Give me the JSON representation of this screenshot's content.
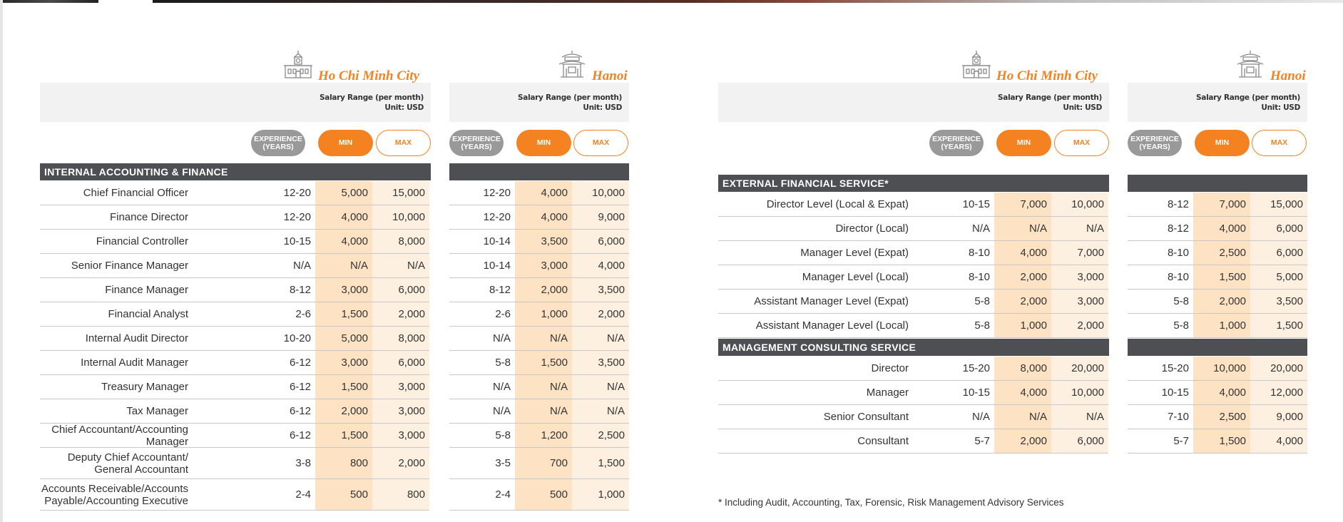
{
  "colors": {
    "accent": "#f58220",
    "section_bar": "#4d4f52",
    "min_fill": "#fde3c4",
    "max_fill": "#fdf0e0",
    "header_box": "#f2f2f2"
  },
  "cities": {
    "hcmc": "Ho Chi Minh City",
    "hanoi": "Hanoi"
  },
  "icons": {
    "hcmc": "clock-tower-building-icon",
    "hanoi": "pagoda-gate-icon"
  },
  "header": {
    "salary_range": "Salary Range (per month)",
    "unit": "Unit: USD"
  },
  "pills": {
    "experience": "EXPERIENCE (YEARS)",
    "min": "MIN",
    "max": "MAX"
  },
  "left_table": {
    "section": "INTERNAL ACCOUNTING & FINANCE",
    "rows": [
      {
        "role": "Chief Financial Officer",
        "hcmc": [
          "12-20",
          "5,000",
          "15,000"
        ],
        "hanoi": [
          "12-20",
          "4,000",
          "10,000"
        ]
      },
      {
        "role": "Finance Director",
        "hcmc": [
          "12-20",
          "4,000",
          "10,000"
        ],
        "hanoi": [
          "12-20",
          "4,000",
          "9,000"
        ]
      },
      {
        "role": "Financial Controller",
        "hcmc": [
          "10-15",
          "4,000",
          "8,000"
        ],
        "hanoi": [
          "10-14",
          "3,500",
          "6,000"
        ]
      },
      {
        "role": "Senior Finance Manager",
        "hcmc": [
          "N/A",
          "N/A",
          "N/A"
        ],
        "hanoi": [
          "10-14",
          "3,000",
          "4,000"
        ]
      },
      {
        "role": "Finance Manager",
        "hcmc": [
          "8-12",
          "3,000",
          "6,000"
        ],
        "hanoi": [
          "8-12",
          "2,000",
          "3,500"
        ]
      },
      {
        "role": "Financial Analyst",
        "hcmc": [
          "2-6",
          "1,500",
          "2,000"
        ],
        "hanoi": [
          "2-6",
          "1,000",
          "2,000"
        ]
      },
      {
        "role": "Internal Audit Director",
        "hcmc": [
          "10-20",
          "5,000",
          "8,000"
        ],
        "hanoi": [
          "N/A",
          "N/A",
          "N/A"
        ]
      },
      {
        "role": "Internal Audit Manager",
        "hcmc": [
          "6-12",
          "3,000",
          "6,000"
        ],
        "hanoi": [
          "5-8",
          "1,500",
          "3,500"
        ]
      },
      {
        "role": "Treasury Manager",
        "hcmc": [
          "6-12",
          "1,500",
          "3,000"
        ],
        "hanoi": [
          "N/A",
          "N/A",
          "N/A"
        ]
      },
      {
        "role": "Tax Manager",
        "hcmc": [
          "6-12",
          "2,000",
          "3,000"
        ],
        "hanoi": [
          "N/A",
          "N/A",
          "N/A"
        ]
      },
      {
        "role": "Chief Accountant/Accounting Manager",
        "hcmc": [
          "6-12",
          "1,500",
          "3,000"
        ],
        "hanoi": [
          "5-8",
          "1,200",
          "2,500"
        ]
      },
      {
        "role_lines": [
          "Deputy Chief Accountant/",
          "General Accountant"
        ],
        "hcmc": [
          "3-8",
          "800",
          "2,000"
        ],
        "hanoi": [
          "3-5",
          "700",
          "1,500"
        ]
      },
      {
        "role_lines": [
          "Accounts Receivable/Accounts",
          "Payable/Accounting Executive"
        ],
        "hcmc": [
          "2-4",
          "500",
          "800"
        ],
        "hanoi": [
          "2-4",
          "500",
          "1,000"
        ]
      }
    ]
  },
  "right_table": {
    "sections": [
      {
        "title": "EXTERNAL FINANCIAL SERVICE*",
        "rows": [
          {
            "role": "Director Level (Local & Expat)",
            "hcmc": [
              "10-15",
              "7,000",
              "10,000"
            ],
            "hanoi": [
              "8-12",
              "7,000",
              "15,000"
            ]
          },
          {
            "role": "Director (Local)",
            "hcmc": [
              "N/A",
              "N/A",
              "N/A"
            ],
            "hanoi": [
              "8-12",
              "4,000",
              "6,000"
            ]
          },
          {
            "role": "Manager Level (Expat)",
            "hcmc": [
              "8-10",
              "4,000",
              "7,000"
            ],
            "hanoi": [
              "8-10",
              "2,500",
              "6,000"
            ]
          },
          {
            "role": "Manager Level (Local)",
            "hcmc": [
              "8-10",
              "2,000",
              "3,000"
            ],
            "hanoi": [
              "8-10",
              "1,500",
              "5,000"
            ]
          },
          {
            "role": "Assistant Manager Level (Expat)",
            "hcmc": [
              "5-8",
              "2,000",
              "3,000"
            ],
            "hanoi": [
              "5-8",
              "2,000",
              "3,500"
            ]
          },
          {
            "role": "Assistant Manager Level (Local)",
            "hcmc": [
              "5-8",
              "1,000",
              "2,000"
            ],
            "hanoi": [
              "5-8",
              "1,000",
              "1,500"
            ]
          }
        ]
      },
      {
        "title": "MANAGEMENT CONSULTING SERVICE",
        "rows": [
          {
            "role": "Director",
            "hcmc": [
              "15-20",
              "8,000",
              "20,000"
            ],
            "hanoi": [
              "15-20",
              "10,000",
              "20,000"
            ]
          },
          {
            "role": "Manager",
            "hcmc": [
              "10-15",
              "4,000",
              "10,000"
            ],
            "hanoi": [
              "10-15",
              "4,000",
              "12,000"
            ]
          },
          {
            "role": "Senior Consultant",
            "hcmc": [
              "N/A",
              "N/A",
              "N/A"
            ],
            "hanoi": [
              "7-10",
              "2,500",
              "9,000"
            ]
          },
          {
            "role": "Consultant",
            "hcmc": [
              "5-7",
              "2,000",
              "6,000"
            ],
            "hanoi": [
              "5-7",
              "1,500",
              "4,000"
            ]
          }
        ]
      }
    ]
  },
  "footnote": "* Including Audit, Accounting, Tax, Forensic, Risk Management Advisory Services"
}
